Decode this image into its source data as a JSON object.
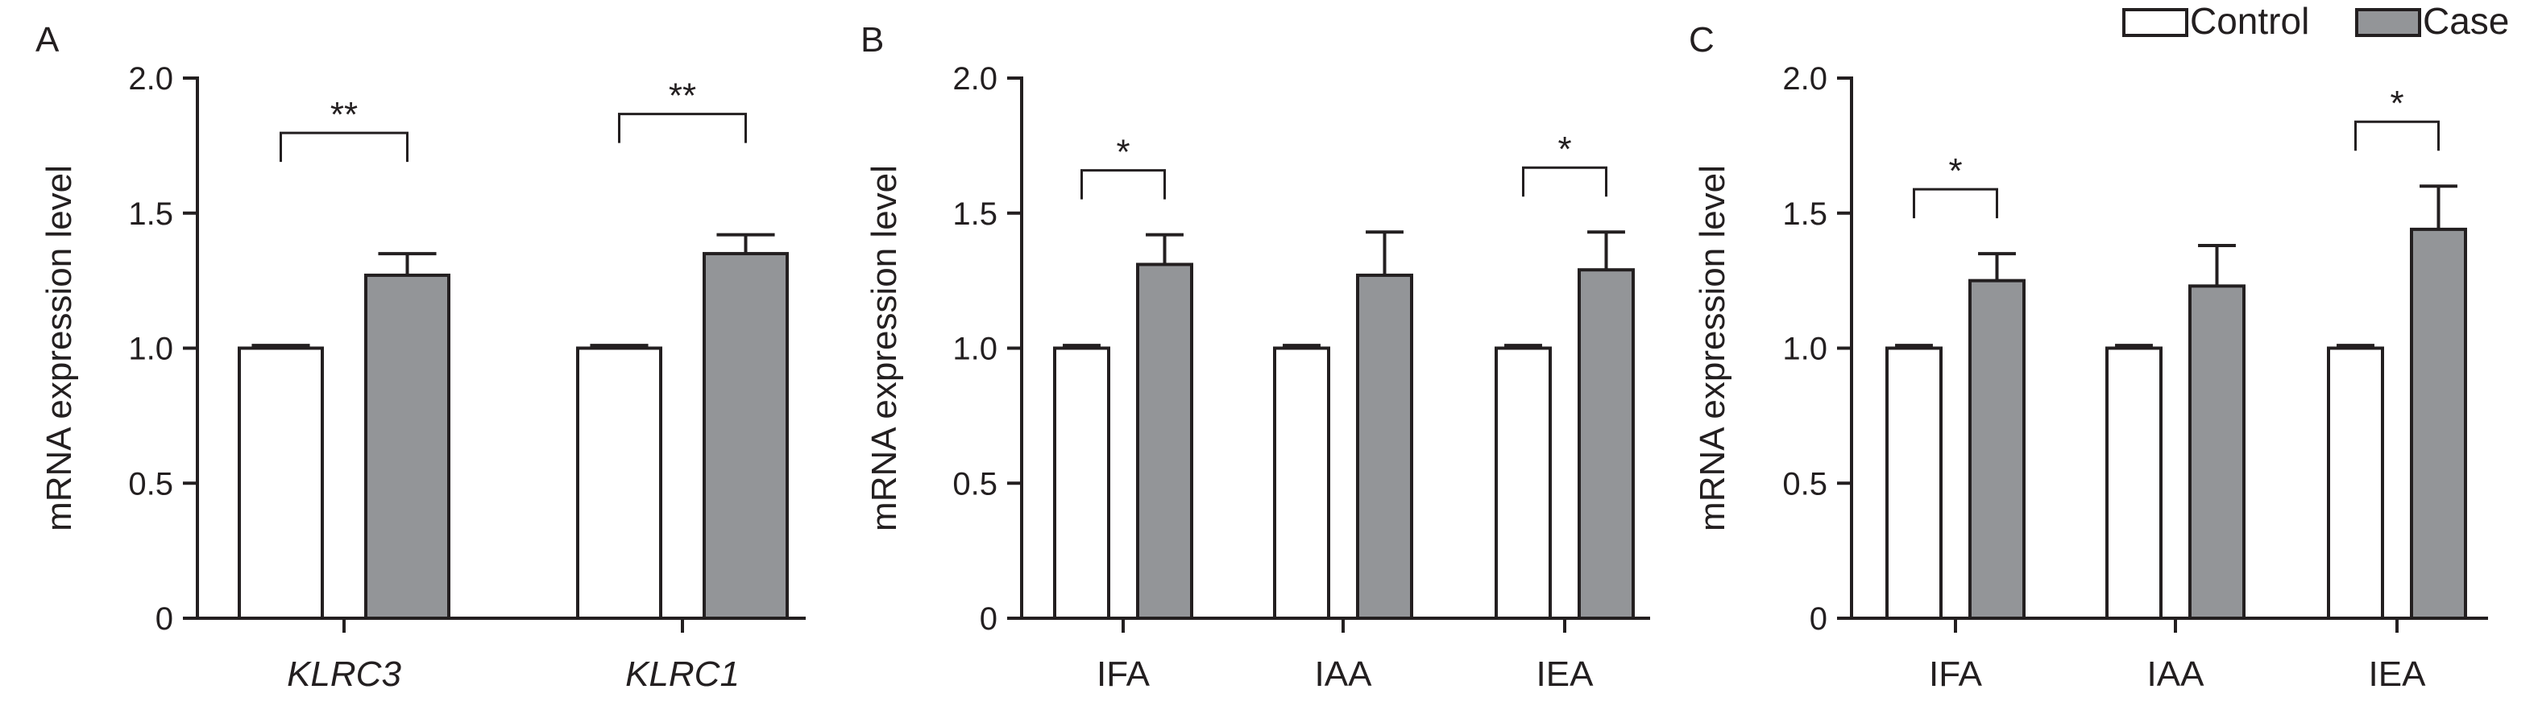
{
  "colors": {
    "control": "#ffffff",
    "case": "#939598",
    "stroke": "#231f20"
  },
  "legend": [
    {
      "name": "Control",
      "color": "#ffffff"
    },
    {
      "name": "Case",
      "color": "#939598"
    }
  ],
  "chart_data": [
    {
      "type": "bar",
      "panel": "A",
      "ylabel": "mRNA expression level",
      "ylim": [
        0,
        2.0
      ],
      "yticks": [
        "0",
        "0.5",
        "1.0",
        "1.5",
        "2.0"
      ],
      "categories": [
        "KLRC3",
        "KLRC1"
      ],
      "italic_categories": true,
      "series": [
        {
          "name": "Control",
          "values": [
            1.0,
            1.0
          ],
          "errors": [
            0.01,
            0.01
          ]
        },
        {
          "name": "Case",
          "values": [
            1.27,
            1.35
          ],
          "errors": [
            0.08,
            0.07
          ]
        }
      ],
      "significance": [
        {
          "category": "KLRC3",
          "label": "**"
        },
        {
          "category": "KLRC1",
          "label": "**"
        }
      ]
    },
    {
      "type": "bar",
      "panel": "B",
      "ylabel": "mRNA expression level",
      "ylim": [
        0,
        2.0
      ],
      "yticks": [
        "0",
        "0.5",
        "1.0",
        "1.5",
        "2.0"
      ],
      "categories": [
        "IFA",
        "IAA",
        "IEA"
      ],
      "italic_categories": false,
      "series": [
        {
          "name": "Control",
          "values": [
            1.0,
            1.0,
            1.0
          ],
          "errors": [
            0.01,
            0.01,
            0.01
          ]
        },
        {
          "name": "Case",
          "values": [
            1.31,
            1.27,
            1.29
          ],
          "errors": [
            0.11,
            0.16,
            0.14
          ]
        }
      ],
      "significance": [
        {
          "category": "IFA",
          "label": "*"
        },
        {
          "category": "IEA",
          "label": "*"
        }
      ]
    },
    {
      "type": "bar",
      "panel": "C",
      "ylabel": "mRNA expression level",
      "ylim": [
        0,
        2.0
      ],
      "yticks": [
        "0",
        "0.5",
        "1.0",
        "1.5",
        "2.0"
      ],
      "categories": [
        "IFA",
        "IAA",
        "IEA"
      ],
      "italic_categories": false,
      "series": [
        {
          "name": "Control",
          "values": [
            1.0,
            1.0,
            1.0
          ],
          "errors": [
            0.01,
            0.01,
            0.01
          ]
        },
        {
          "name": "Case",
          "values": [
            1.25,
            1.23,
            1.44
          ],
          "errors": [
            0.1,
            0.15,
            0.16
          ]
        }
      ],
      "significance": [
        {
          "category": "IFA",
          "label": "*"
        },
        {
          "category": "IEA",
          "label": "*"
        }
      ]
    }
  ]
}
